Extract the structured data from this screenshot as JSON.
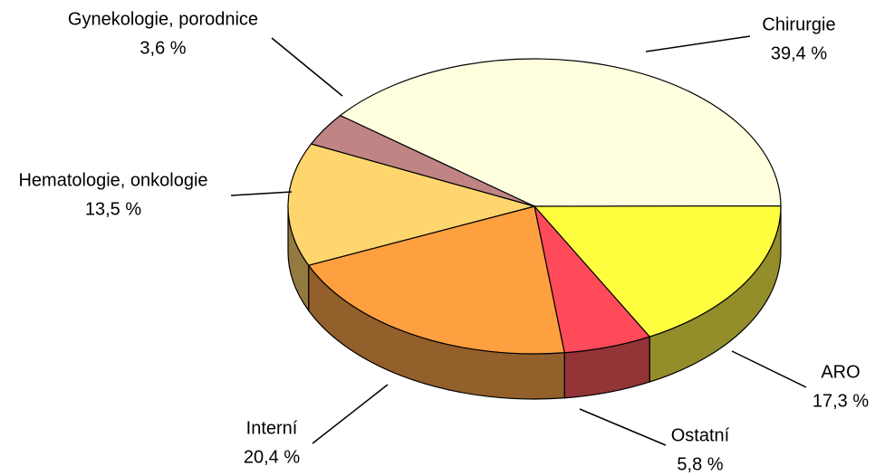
{
  "chart_data": {
    "type": "pie",
    "categories": [
      "Chirurgie",
      "ARO",
      "Ostatní",
      "Interní",
      "Hematologie, onkologie",
      "Gynekologie, porodnice"
    ],
    "values": [
      39.4,
      17.3,
      5.8,
      20.4,
      13.5,
      3.6
    ],
    "value_labels": [
      "39,4 %",
      "17,3 %",
      "5,8 %",
      "20,4 %",
      "13,5 %",
      "3,6 %"
    ],
    "colors": [
      "#ffffe0",
      "#ffff40",
      "#ff4a5a",
      "#ffa040",
      "#ffd66e",
      "#c08484"
    ]
  }
}
